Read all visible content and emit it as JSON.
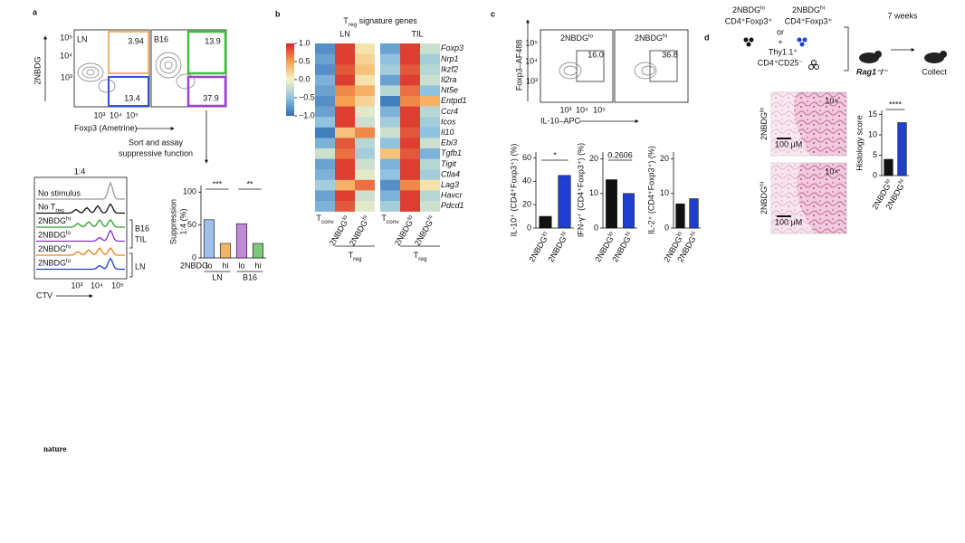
{
  "panel_a": {
    "letter": "a",
    "flow_ln": "LN",
    "flow_b16": "B16",
    "gates": [
      "3.94",
      "13.4",
      "13.9",
      "37.9"
    ],
    "flow_y_label": "2NBDG",
    "flow_y_ticks": [
      "10⁵",
      "10⁴",
      "10³"
    ],
    "flow_x_ticks": [
      "10³",
      "10⁴",
      "10⁵"
    ],
    "flow_x_label": "Foxp3 (Ametrine)",
    "sort_note": [
      "Sort and assay",
      "suppressive function"
    ],
    "histogram": {
      "title": "1:4",
      "rows": [
        "No stimulus",
        {
          "t": "No T",
          "sub": "reg"
        },
        {
          "t": "2NBDG",
          "sup": "hi"
        },
        {
          "t": "2NBDG",
          "sup": "lo"
        },
        {
          "t": "2NBDG",
          "sup": "hi"
        },
        {
          "t": "2NBDG",
          "sup": "lo"
        }
      ],
      "colors": [
        "#9a9a9a",
        "#111111",
        "#2ca02c",
        "#8a2be2",
        "#e8801a",
        "#1f3fd0"
      ],
      "group_tumor": [
        "B16",
        "TIL"
      ],
      "group_ln": "LN",
      "x_label": "CTV",
      "x_ticks": [
        "10³",
        "10⁴",
        "10⁵"
      ]
    },
    "suppression": {
      "ylabel": [
        "Suppression",
        "1:4 (%)"
      ],
      "ylim": [
        0,
        110
      ],
      "yticks": [
        0,
        50,
        100
      ],
      "x_label": "2NBDG",
      "categories": [
        "lo",
        "hi",
        "lo",
        "hi"
      ],
      "groups": [
        "LN",
        "B16"
      ],
      "values": [
        58,
        22,
        52,
        22
      ],
      "colors": [
        "#9ec0ec",
        "#f0b46a",
        "#c08ad8",
        "#7cc77a"
      ],
      "significance": [
        "***",
        "**"
      ]
    }
  },
  "panel_b": {
    "letter": "b",
    "title": {
      "t": "T",
      "sub": "reg",
      "rest": " signature genes"
    },
    "groups": [
      "LN",
      "TIL"
    ],
    "colorbar": {
      "lim": [
        -1,
        1
      ],
      "colors": [
        "#2f6db5",
        "#8fc3e0",
        "#f4f4c4",
        "#f6a050",
        "#d7262b"
      ],
      "ticks": [
        {
          "value": 1,
          "label": "1.0"
        },
        {
          "value": 0.5,
          "label": "0.5"
        },
        {
          "value": 0,
          "label": "0.0"
        },
        {
          "value": -0.5,
          "label": "−0.5"
        },
        {
          "value": -1,
          "label": "−1.0"
        }
      ]
    },
    "columns": [
      {
        "t": "T",
        "sub": "conv"
      },
      {
        "t": "2NBDG",
        "sup": "lo"
      },
      {
        "t": "2NBDG",
        "sup": "hi"
      },
      {
        "t": "T",
        "sub": "conv"
      },
      {
        "t": "2NBDG",
        "sup": "lo"
      },
      {
        "t": "2NBDG",
        "sup": "hi"
      }
    ],
    "treg_labels": [
      {
        "t": "T",
        "sub": "reg"
      },
      {
        "t": "T",
        "sub": "reg"
      }
    ],
    "genes": [
      "Foxp3",
      "Nrp1",
      "Ikzf2",
      "Il2ra",
      "Nt5e",
      "Entpd1",
      "Ccr4",
      "Icos",
      "Il10",
      "Ebi3",
      "Tgfb1",
      "Tigit",
      "Ctla4",
      "Lag3",
      "Havcr",
      "Pdcd1"
    ],
    "matrix": [
      [
        -0.8,
        0.9,
        0.1,
        -0.7,
        0.9,
        -0.2
      ],
      [
        -0.7,
        0.9,
        0.2,
        -0.5,
        0.9,
        -0.4
      ],
      [
        -0.8,
        0.8,
        0.3,
        -0.4,
        0.8,
        -0.3
      ],
      [
        -0.6,
        0.9,
        0.1,
        -0.7,
        0.9,
        -0.2
      ],
      [
        -0.7,
        0.6,
        0.4,
        -0.3,
        0.7,
        -0.5
      ],
      [
        -0.8,
        0.5,
        0.2,
        -0.9,
        0.6,
        0.4
      ],
      [
        -0.7,
        0.9,
        -0.1,
        -0.6,
        0.9,
        -0.3
      ],
      [
        -0.5,
        0.9,
        -0.2,
        -0.4,
        0.9,
        -0.4
      ],
      [
        -0.9,
        0.3,
        0.6,
        -0.2,
        0.8,
        -0.5
      ],
      [
        -0.6,
        0.8,
        -0.3,
        -0.5,
        0.9,
        -0.2
      ],
      [
        -0.2,
        0.7,
        -0.4,
        0.3,
        0.8,
        -0.6
      ],
      [
        -0.7,
        0.9,
        -0.2,
        -0.6,
        0.9,
        -0.3
      ],
      [
        -0.6,
        0.9,
        -0.1,
        -0.5,
        0.9,
        -0.4
      ],
      [
        -0.4,
        0.4,
        0.7,
        -0.8,
        0.6,
        0.1
      ],
      [
        -0.7,
        0.9,
        -0.2,
        -0.6,
        0.9,
        -0.3
      ],
      [
        -0.6,
        0.8,
        -0.1,
        -0.4,
        0.9,
        -0.2
      ]
    ]
  },
  "panel_c": {
    "letter": "c",
    "flow_titles": [
      {
        "t": "2NBDG",
        "sup": "lo"
      },
      {
        "t": "2NBDG",
        "sup": "hi"
      }
    ],
    "gates": [
      "16.0",
      "36.8"
    ],
    "flow_y_label": "Foxp3–AF488",
    "flow_y_ticks": [
      "10⁵",
      "10⁴",
      "10³"
    ],
    "flow_x_ticks": [
      "10³",
      "10⁴",
      "10⁵"
    ],
    "flow_x_label": "IL-10–APC",
    "charts": [
      {
        "ylabel": "IL-10⁺ (CD4⁺Foxp3⁺) (%)",
        "ylim": [
          0,
          65
        ],
        "yticks": [
          0,
          20,
          40,
          60
        ],
        "categories": [
          {
            "t": "2NBDG",
            "sup": "lo"
          },
          {
            "t": "2NBDG",
            "sup": "hi"
          }
        ],
        "values": [
          10,
          45
        ],
        "colors": [
          "#111111",
          "#1f3fd0"
        ],
        "significance": [
          "*"
        ]
      },
      {
        "ylabel": "IFN-γ⁺ (CD4⁺Foxp3⁺) (%)",
        "ylim": [
          0,
          22
        ],
        "yticks": [
          0,
          10,
          20
        ],
        "categories": [
          {
            "t": "2NBDG",
            "sup": "lo"
          },
          {
            "t": "2NBDG",
            "sup": "hi"
          }
        ],
        "values": [
          14,
          10
        ],
        "colors": [
          "#111111",
          "#1f3fd0"
        ],
        "significance": [
          "0.2606"
        ]
      },
      {
        "ylabel": "IL-2⁺ (CD4⁺Foxp3⁺) (%)",
        "ylim": [
          0,
          22
        ],
        "yticks": [
          0,
          10,
          20
        ],
        "categories": [
          {
            "t": "2NBDG",
            "sup": "lo"
          },
          {
            "t": "2NBDG",
            "sup": "hi"
          }
        ],
        "values": [
          7,
          8.5
        ],
        "colors": [
          "#111111",
          "#1f3fd0"
        ],
        "significance": []
      }
    ]
  },
  "panel_d": {
    "letter": "d",
    "donor_lo": [
      {
        "t": "2NBDG",
        "sup": "lo"
      },
      "CD4⁺Foxp3⁺"
    ],
    "donor_hi": [
      {
        "t": "2NBDG",
        "sup": "hi"
      },
      "CD4⁺Foxp3⁺"
    ],
    "or": "or",
    "plus": "+",
    "responder": [
      "Thy1.1⁺",
      "CD4⁺CD25⁻"
    ],
    "duration": "7 weeks",
    "recipient": "Rag1⁻/⁻",
    "collect": "Collect",
    "magnification": [
      "10×",
      "10×"
    ],
    "scale_bar": [
      "100 μM",
      "100 μM"
    ],
    "image_labels": [
      {
        "t": "2NBDG",
        "sup": "lo"
      },
      {
        "t": "2NBDG",
        "sup": "hi"
      }
    ],
    "histology": {
      "ylabel": "Histology score",
      "ylim": [
        0,
        16
      ],
      "yticks": [
        0,
        5,
        10,
        15
      ],
      "categories": [
        {
          "t": "2NBDG",
          "sup": "lo"
        },
        {
          "t": "2NBDG",
          "sup": "hi"
        }
      ],
      "values": [
        4,
        13
      ],
      "colors": [
        "#111111",
        "#1f3fd0"
      ],
      "significance": [
        "****"
      ]
    }
  },
  "logo": "nature"
}
